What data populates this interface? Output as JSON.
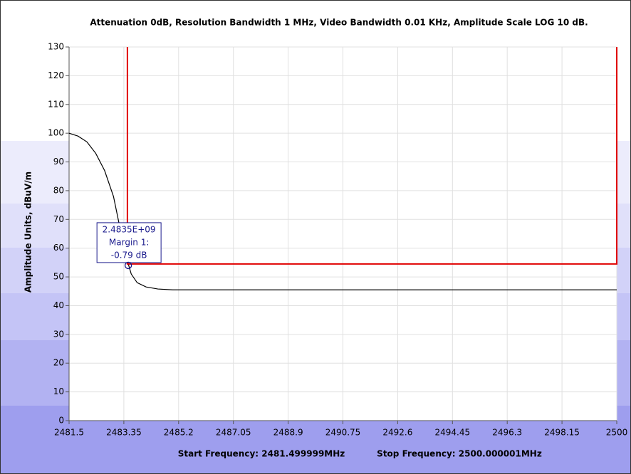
{
  "chart_data": {
    "type": "line",
    "title": "Attenuation 0dB, Resolution Bandwidth 1 MHz, Video Bandwidth 0.01 KHz, Amplitude Scale LOG 10 dB.",
    "ylabel": "Amplitude Units, dBuV/m",
    "footer_start": "Start Frequency: 2481.499999MHz",
    "footer_stop": "Stop Frequency: 2500.000001MHz",
    "xlim": [
      2481.5,
      2500
    ],
    "xticks": [
      2481.5,
      2483.35,
      2485.2,
      2487.05,
      2488.9,
      2490.75,
      2492.6,
      2494.45,
      2496.3,
      2498.15,
      2500
    ],
    "ylim": [
      0,
      130
    ],
    "yticks": [
      0,
      10,
      20,
      30,
      40,
      50,
      60,
      70,
      80,
      90,
      100,
      110,
      120,
      130
    ],
    "grid": true,
    "series": [
      {
        "color": "#000000",
        "x": [
          2481.5,
          2481.8,
          2482.1,
          2482.4,
          2482.7,
          2483.0,
          2483.2,
          2483.4,
          2483.6,
          2483.8,
          2484.1,
          2484.5,
          2485.0,
          2500
        ],
        "values": [
          100,
          99,
          97,
          93,
          87,
          78,
          68,
          58,
          51,
          48,
          46.5,
          45.8,
          45.5,
          45.5
        ]
      },
      {
        "color": "#e00000",
        "x": [
          2483.47,
          2483.47,
          2500,
          2500
        ],
        "values": [
          130,
          54.5,
          54.5,
          130
        ]
      }
    ],
    "marker": {
      "x": 2483.5,
      "y": 54,
      "lines": [
        "2.4835E+09",
        "Margin 1:",
        "-0.79 dB"
      ]
    }
  }
}
